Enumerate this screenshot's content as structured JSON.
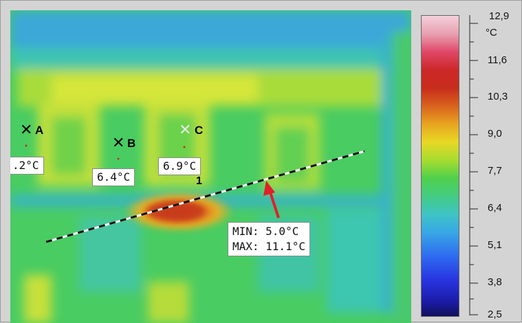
{
  "image": {
    "spots": [
      {
        "label": "A",
        "reading": ".2°C"
      },
      {
        "label": "B",
        "reading": "6.4°C"
      },
      {
        "label": "C",
        "reading": "6.9°C"
      }
    ],
    "line_label": "1",
    "line_stats": {
      "min": "MIN: 5.0°C",
      "max": "MAX: 11.1°C"
    }
  },
  "scale": {
    "unit": "°C",
    "ticks": [
      "12,9",
      "11,6",
      "10,3",
      "9,0",
      "7,7",
      "6,4",
      "5,1",
      "3,8",
      "2,5"
    ]
  },
  "colors": {
    "background": "#d4d4d4",
    "hot": "#c8301a",
    "marker_line_dark": "#111111",
    "marker_line_light": "#ffffff",
    "arrow": "#e0202a"
  }
}
